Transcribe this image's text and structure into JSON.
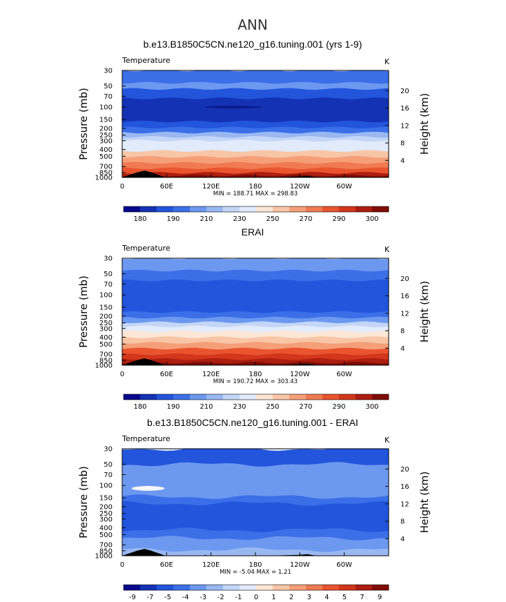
{
  "main_title": "ANN",
  "chart_data": [
    {
      "type": "heatmap",
      "title": "b.e13.B1850C5CN.ne120_g16.tuning.001 (yrs 1-9)",
      "variable": "Temperature",
      "units": "K",
      "ylabel_left": "Pressure (mb)",
      "ylabel_right": "Height (km)",
      "pressure_ticks": [
        "30",
        "50",
        "70",
        "100",
        "150",
        "200",
        "250",
        "300",
        "400",
        "500",
        "700",
        "850",
        "1000"
      ],
      "height_ticks": [
        "20",
        "16",
        "12",
        "8",
        "4"
      ],
      "lon_ticks": [
        "0",
        "60E",
        "120E",
        "180",
        "120W",
        "60W"
      ],
      "stats": "MIN = 188.71   MAX = 298.83",
      "bands": [
        {
          "p": 30,
          "c": 0.5
        },
        {
          "p": 45,
          "c": 0.65
        },
        {
          "p": 55,
          "c": 0.28
        },
        {
          "p": 75,
          "c": 0.22
        },
        {
          "p": 130,
          "c": 0.22
        },
        {
          "p": 160,
          "c": 0.35
        },
        {
          "p": 195,
          "c": 0.5
        },
        {
          "p": 230,
          "c": 0.7
        },
        {
          "p": 265,
          "c": 0.85
        },
        {
          "p": 300,
          "c": 1.05
        },
        {
          "p": 350,
          "c": 1.15
        },
        {
          "p": 420,
          "c": 1.35
        },
        {
          "p": 510,
          "c": 1.5
        },
        {
          "p": 620,
          "c": 1.7
        },
        {
          "p": 740,
          "c": 1.9
        },
        {
          "p": 860,
          "c": 2.1
        },
        {
          "p": 940,
          "c": 2.3
        }
      ],
      "colorbar": {
        "levels": [
          "180",
          "190",
          "210",
          "230",
          "250",
          "270",
          "290",
          "300"
        ],
        "colors": [
          "#08088c",
          "#1432b4",
          "#2255dc",
          "#3a6fe8",
          "#6d98f0",
          "#99b8f2",
          "#c4d6f7",
          "#e2ebfb",
          "#fbe6d6",
          "#f8c6a6",
          "#f59f79",
          "#f07a52",
          "#e9542f",
          "#d3361a",
          "#ac1e10",
          "#7f0d05"
        ]
      }
    },
    {
      "type": "heatmap",
      "title": "ERAI",
      "variable": "Temperature",
      "units": "K",
      "ylabel_left": "Pressure (mb)",
      "ylabel_right": "Height (km)",
      "pressure_ticks": [
        "30",
        "50",
        "70",
        "100",
        "150",
        "200",
        "250",
        "300",
        "400",
        "500",
        "700",
        "850",
        "1000"
      ],
      "height_ticks": [
        "20",
        "16",
        "12",
        "8",
        "4"
      ],
      "lon_ticks": [
        "0",
        "60E",
        "120E",
        "180",
        "120W",
        "60W"
      ],
      "stats": "MIN = 190.72   MAX = 303.43",
      "bands": [
        {
          "p": 30,
          "c": 0.55
        },
        {
          "p": 45,
          "c": 0.45
        },
        {
          "p": 62,
          "c": 0.3
        },
        {
          "p": 95,
          "c": 0.25
        },
        {
          "p": 140,
          "c": 0.35
        },
        {
          "p": 175,
          "c": 0.5
        },
        {
          "p": 210,
          "c": 0.68
        },
        {
          "p": 245,
          "c": 0.85
        },
        {
          "p": 280,
          "c": 1.05
        },
        {
          "p": 330,
          "c": 1.2
        },
        {
          "p": 400,
          "c": 1.4
        },
        {
          "p": 480,
          "c": 1.58
        },
        {
          "p": 580,
          "c": 1.78
        },
        {
          "p": 700,
          "c": 1.98
        },
        {
          "p": 820,
          "c": 2.2
        },
        {
          "p": 920,
          "c": 2.4
        }
      ],
      "colorbar": {
        "levels": [
          "180",
          "190",
          "210",
          "230",
          "250",
          "270",
          "290",
          "300"
        ],
        "colors": [
          "#08088c",
          "#1432b4",
          "#2255dc",
          "#3a6fe8",
          "#6d98f0",
          "#99b8f2",
          "#c4d6f7",
          "#e2ebfb",
          "#fbe6d6",
          "#f8c6a6",
          "#f59f79",
          "#f07a52",
          "#e9542f",
          "#d3361a",
          "#ac1e10",
          "#7f0d05"
        ]
      }
    },
    {
      "type": "heatmap",
      "title": "b.e13.B1850C5CN.ne120_g16.tuning.001 - ERAI",
      "variable": "Temperature",
      "units": "K",
      "ylabel_left": "Pressure (mb)",
      "ylabel_right": "Height (km)",
      "pressure_ticks": [
        "30",
        "50",
        "70",
        "100",
        "150",
        "200",
        "250",
        "300",
        "400",
        "500",
        "700",
        "850",
        "1000"
      ],
      "height_ticks": [
        "20",
        "16",
        "12",
        "8",
        "4"
      ],
      "lon_ticks": [
        "0",
        "60E",
        "120E",
        "180",
        "120W",
        "60W"
      ],
      "stats": "MIN =  -5.04   MAX =   1.21",
      "bands": [
        {
          "p": 30,
          "c": 0.55
        },
        {
          "p": 50,
          "c": 0.85
        },
        {
          "p": 68,
          "c": 0.95
        },
        {
          "p": 100,
          "c": 0.82
        },
        {
          "p": 145,
          "c": 0.72
        },
        {
          "p": 180,
          "c": 0.55
        },
        {
          "p": 250,
          "c": 0.35
        },
        {
          "p": 330,
          "c": 0.45
        },
        {
          "p": 430,
          "c": 0.7
        },
        {
          "p": 560,
          "c": 0.9
        },
        {
          "p": 700,
          "c": 0.95
        },
        {
          "p": 820,
          "c": 1.0
        },
        {
          "p": 930,
          "c": 1.05
        }
      ],
      "colorbar": {
        "levels": [
          "-9",
          "-7",
          "-5",
          "-4",
          "-3",
          "-2",
          "-1",
          "0",
          "1",
          "2",
          "3",
          "4",
          "5",
          "7",
          "9"
        ],
        "colors": [
          "#08088c",
          "#1432b4",
          "#2255dc",
          "#3a6fe8",
          "#6d98f0",
          "#99b8f2",
          "#c4d6f7",
          "#e2ebfb",
          "#fbe6d6",
          "#f8c6a6",
          "#f59f79",
          "#f07a52",
          "#e9542f",
          "#d3361a",
          "#ac1e10",
          "#7f0d05"
        ]
      }
    }
  ]
}
